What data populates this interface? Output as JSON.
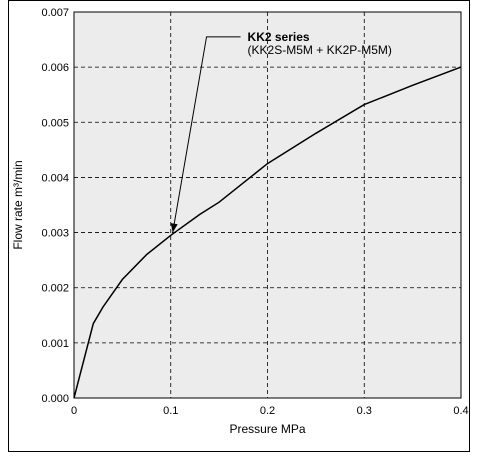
{
  "chart_data": {
    "type": "line",
    "xlabel": "Pressure MPa",
    "ylabel": "Flow rate m³/min",
    "xlim": [
      0,
      0.4
    ],
    "ylim": [
      0,
      0.007
    ],
    "x_ticks": [
      "0",
      "0.1",
      "0.2",
      "0.3",
      "0.4"
    ],
    "y_ticks": [
      "0.000",
      "0.001",
      "0.002",
      "0.003",
      "0.004",
      "0.005",
      "0.006",
      "0.007"
    ],
    "grid": true,
    "series": [
      {
        "name": "KK2 series",
        "x": [
          0,
          0.02,
          0.03,
          0.05,
          0.075,
          0.1,
          0.13,
          0.15,
          0.2,
          0.25,
          0.3,
          0.35,
          0.4
        ],
        "y": [
          0,
          0.00135,
          0.00165,
          0.00215,
          0.0026,
          0.00295,
          0.00333,
          0.00355,
          0.00425,
          0.0048,
          0.00532,
          0.00567,
          0.006
        ],
        "color": "#000000"
      }
    ],
    "annotation": {
      "title": "KK2 series",
      "subtitle": "(KK2S-M5M + KK2P-M5M)",
      "point": [
        0.102,
        0.003
      ],
      "elbow": [
        0.137,
        0.00655
      ]
    },
    "plot_background": "#ececec"
  }
}
